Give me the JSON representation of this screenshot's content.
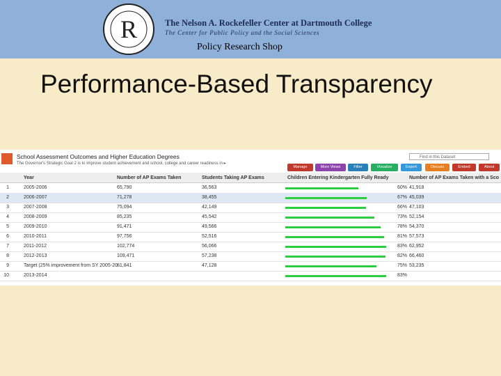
{
  "header": {
    "logo_letter": "R",
    "center": "The Nelson A. Rockefeller Center at Dartmouth College",
    "subcenter": "The Center for Public Policy and the Social Sciences",
    "shop": "Policy Research Shop"
  },
  "slide_title": "Performance-Based Transparency",
  "dataset": {
    "title": "School Assessment Outcomes and Higher Education Degrees",
    "description": "The Governor's Strategic Goal 2 is to improve student achievement and school, college and career readiness in ▸",
    "search": "Find in this Dataset",
    "buttons": [
      "Manage",
      "More Views",
      "Filter",
      "Visualize",
      "Export",
      "Discuss",
      "Embed",
      "About"
    ],
    "columns": [
      "Year",
      "Number of AP Exams Taken",
      "Students Taking AP Exams",
      "Children Entering Kindergarten Fully Ready",
      "Number of AP Exams Taken with a Sco"
    ],
    "rows": [
      [
        "1",
        "2005-2006",
        "65,790",
        "36,563",
        {
          "value": 60,
          "label": "60%"
        },
        "41,918"
      ],
      [
        "2",
        "2006-2007",
        "71,278",
        "38,455",
        {
          "value": 67,
          "label": "67%"
        },
        "45,039"
      ],
      [
        "3",
        "2007-2008",
        "75,094",
        "42,149",
        {
          "value": 66,
          "label": "66%"
        },
        "47,103"
      ],
      [
        "4",
        "2008-2009",
        "85,235",
        "45,542",
        {
          "value": 73,
          "label": "73%"
        },
        "52,154"
      ],
      [
        "5",
        "2009-2010",
        "91,471",
        "49,566",
        {
          "value": 78,
          "label": "78%"
        },
        "54,370"
      ],
      [
        "6",
        "2010-2011",
        "97,756",
        "52,516",
        {
          "value": 81,
          "label": "81%"
        },
        "57,573"
      ],
      [
        "7",
        "2011-2012",
        "102,774",
        "56,066",
        {
          "value": 83,
          "label": "83%"
        },
        "62,952"
      ],
      [
        "8",
        "2012-2013",
        "109,471",
        "57,238",
        {
          "value": 82,
          "label": "82%"
        },
        "66,460"
      ],
      [
        "9",
        "Target (25% improvement from SY 2005-20",
        "81,841",
        "47,128",
        {
          "value": 75,
          "label": "75%"
        },
        "53,235"
      ],
      [
        "10",
        "2013-2014",
        null,
        null,
        {
          "value": 83,
          "label": "83%"
        },
        null
      ]
    ]
  }
}
